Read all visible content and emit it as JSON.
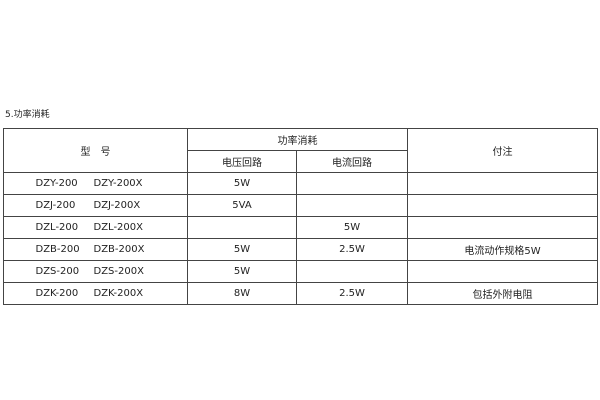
{
  "section_title": "5.功率消耗",
  "headers": {
    "model": "型　号",
    "power": "功率消耗",
    "voltage_circuit": "电压回路",
    "current_circuit": "电流回路",
    "note": "付注"
  },
  "rows": [
    {
      "model_a": "DZY-200",
      "model_b": "DZY-200X",
      "voltage": "5W",
      "current": "",
      "note": ""
    },
    {
      "model_a": "DZJ-200",
      "model_b": "DZJ-200X",
      "voltage": "5VA",
      "current": "",
      "note": ""
    },
    {
      "model_a": "DZL-200",
      "model_b": "DZL-200X",
      "voltage": "",
      "current": "5W",
      "note": ""
    },
    {
      "model_a": "DZB-200",
      "model_b": "DZB-200X",
      "voltage": "5W",
      "current": "2.5W",
      "note": "电流动作规格5W"
    },
    {
      "model_a": "DZS-200",
      "model_b": "DZS-200X",
      "voltage": "5W",
      "current": "",
      "note": ""
    },
    {
      "model_a": "DZK-200",
      "model_b": "DZK-200X",
      "voltage": "8W",
      "current": "2.5W",
      "note": "包括外附电阻"
    }
  ]
}
